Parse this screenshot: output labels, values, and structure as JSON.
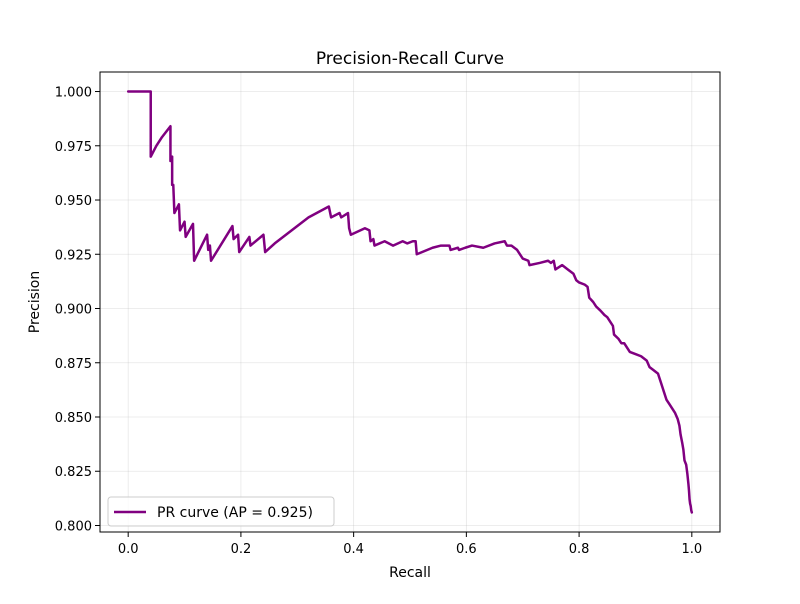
{
  "chart_data": {
    "type": "line",
    "title": "Precision-Recall Curve",
    "xlabel": "Recall",
    "ylabel": "Precision",
    "xlim": [
      -0.05,
      1.05
    ],
    "ylim": [
      0.797,
      1.009
    ],
    "grid": true,
    "legend_position": "lower-left",
    "xticks": [
      0.0,
      0.2,
      0.4,
      0.6,
      0.8,
      1.0
    ],
    "xtick_labels": [
      "0.0",
      "0.2",
      "0.4",
      "0.6",
      "0.8",
      "1.0"
    ],
    "yticks": [
      0.8,
      0.825,
      0.85,
      0.875,
      0.9,
      0.925,
      0.95,
      0.975,
      1.0
    ],
    "ytick_labels": [
      "0.800",
      "0.825",
      "0.850",
      "0.875",
      "0.900",
      "0.925",
      "0.950",
      "0.975",
      "1.000"
    ],
    "series": [
      {
        "name": "PR curve (AP = 0.925)",
        "color": "#800080",
        "points": [
          [
            0.0,
            1.0
          ],
          [
            0.04,
            1.0
          ],
          [
            0.04,
            0.97
          ],
          [
            0.05,
            0.975
          ],
          [
            0.06,
            0.979
          ],
          [
            0.075,
            0.984
          ],
          [
            0.075,
            0.968
          ],
          [
            0.077,
            0.97
          ],
          [
            0.078,
            0.97
          ],
          [
            0.078,
            0.957
          ],
          [
            0.08,
            0.957
          ],
          [
            0.082,
            0.944
          ],
          [
            0.09,
            0.948
          ],
          [
            0.092,
            0.936
          ],
          [
            0.1,
            0.94
          ],
          [
            0.102,
            0.933
          ],
          [
            0.115,
            0.939
          ],
          [
            0.117,
            0.922
          ],
          [
            0.14,
            0.934
          ],
          [
            0.142,
            0.927
          ],
          [
            0.145,
            0.929
          ],
          [
            0.147,
            0.922
          ],
          [
            0.185,
            0.938
          ],
          [
            0.187,
            0.932
          ],
          [
            0.195,
            0.934
          ],
          [
            0.197,
            0.926
          ],
          [
            0.215,
            0.933
          ],
          [
            0.217,
            0.929
          ],
          [
            0.24,
            0.934
          ],
          [
            0.243,
            0.926
          ],
          [
            0.26,
            0.93
          ],
          [
            0.29,
            0.936
          ],
          [
            0.32,
            0.942
          ],
          [
            0.356,
            0.947
          ],
          [
            0.36,
            0.942
          ],
          [
            0.375,
            0.944
          ],
          [
            0.378,
            0.942
          ],
          [
            0.39,
            0.944
          ],
          [
            0.392,
            0.937
          ],
          [
            0.395,
            0.934
          ],
          [
            0.42,
            0.937
          ],
          [
            0.428,
            0.936
          ],
          [
            0.43,
            0.931
          ],
          [
            0.435,
            0.932
          ],
          [
            0.437,
            0.929
          ],
          [
            0.455,
            0.931
          ],
          [
            0.47,
            0.929
          ],
          [
            0.487,
            0.931
          ],
          [
            0.495,
            0.93
          ],
          [
            0.505,
            0.931
          ],
          [
            0.51,
            0.931
          ],
          [
            0.512,
            0.925
          ],
          [
            0.54,
            0.928
          ],
          [
            0.555,
            0.929
          ],
          [
            0.57,
            0.929
          ],
          [
            0.572,
            0.927
          ],
          [
            0.585,
            0.928
          ],
          [
            0.587,
            0.927
          ],
          [
            0.598,
            0.928
          ],
          [
            0.61,
            0.929
          ],
          [
            0.63,
            0.928
          ],
          [
            0.65,
            0.93
          ],
          [
            0.668,
            0.931
          ],
          [
            0.672,
            0.929
          ],
          [
            0.68,
            0.929
          ],
          [
            0.69,
            0.927
          ],
          [
            0.7,
            0.923
          ],
          [
            0.71,
            0.922
          ],
          [
            0.712,
            0.92
          ],
          [
            0.73,
            0.921
          ],
          [
            0.745,
            0.922
          ],
          [
            0.75,
            0.921
          ],
          [
            0.755,
            0.922
          ],
          [
            0.758,
            0.918
          ],
          [
            0.77,
            0.92
          ],
          [
            0.78,
            0.918
          ],
          [
            0.79,
            0.916
          ],
          [
            0.795,
            0.913
          ],
          [
            0.8,
            0.912
          ],
          [
            0.81,
            0.911
          ],
          [
            0.815,
            0.91
          ],
          [
            0.818,
            0.905
          ],
          [
            0.825,
            0.903
          ],
          [
            0.83,
            0.901
          ],
          [
            0.838,
            0.899
          ],
          [
            0.845,
            0.897
          ],
          [
            0.85,
            0.896
          ],
          [
            0.855,
            0.894
          ],
          [
            0.86,
            0.892
          ],
          [
            0.862,
            0.888
          ],
          [
            0.87,
            0.886
          ],
          [
            0.875,
            0.884
          ],
          [
            0.88,
            0.884
          ],
          [
            0.885,
            0.882
          ],
          [
            0.89,
            0.88
          ],
          [
            0.9,
            0.879
          ],
          [
            0.91,
            0.878
          ],
          [
            0.92,
            0.876
          ],
          [
            0.925,
            0.873
          ],
          [
            0.93,
            0.872
          ],
          [
            0.94,
            0.87
          ],
          [
            0.945,
            0.866
          ],
          [
            0.95,
            0.862
          ],
          [
            0.955,
            0.858
          ],
          [
            0.96,
            0.856
          ],
          [
            0.965,
            0.854
          ],
          [
            0.97,
            0.852
          ],
          [
            0.975,
            0.849
          ],
          [
            0.978,
            0.846
          ],
          [
            0.98,
            0.842
          ],
          [
            0.983,
            0.838
          ],
          [
            0.985,
            0.835
          ],
          [
            0.987,
            0.83
          ],
          [
            0.99,
            0.828
          ],
          [
            0.992,
            0.824
          ],
          [
            0.994,
            0.819
          ],
          [
            0.995,
            0.816
          ],
          [
            0.996,
            0.812
          ],
          [
            0.997,
            0.81
          ],
          [
            0.998,
            0.809
          ],
          [
            0.999,
            0.807
          ],
          [
            1.0,
            0.806
          ]
        ]
      }
    ]
  }
}
